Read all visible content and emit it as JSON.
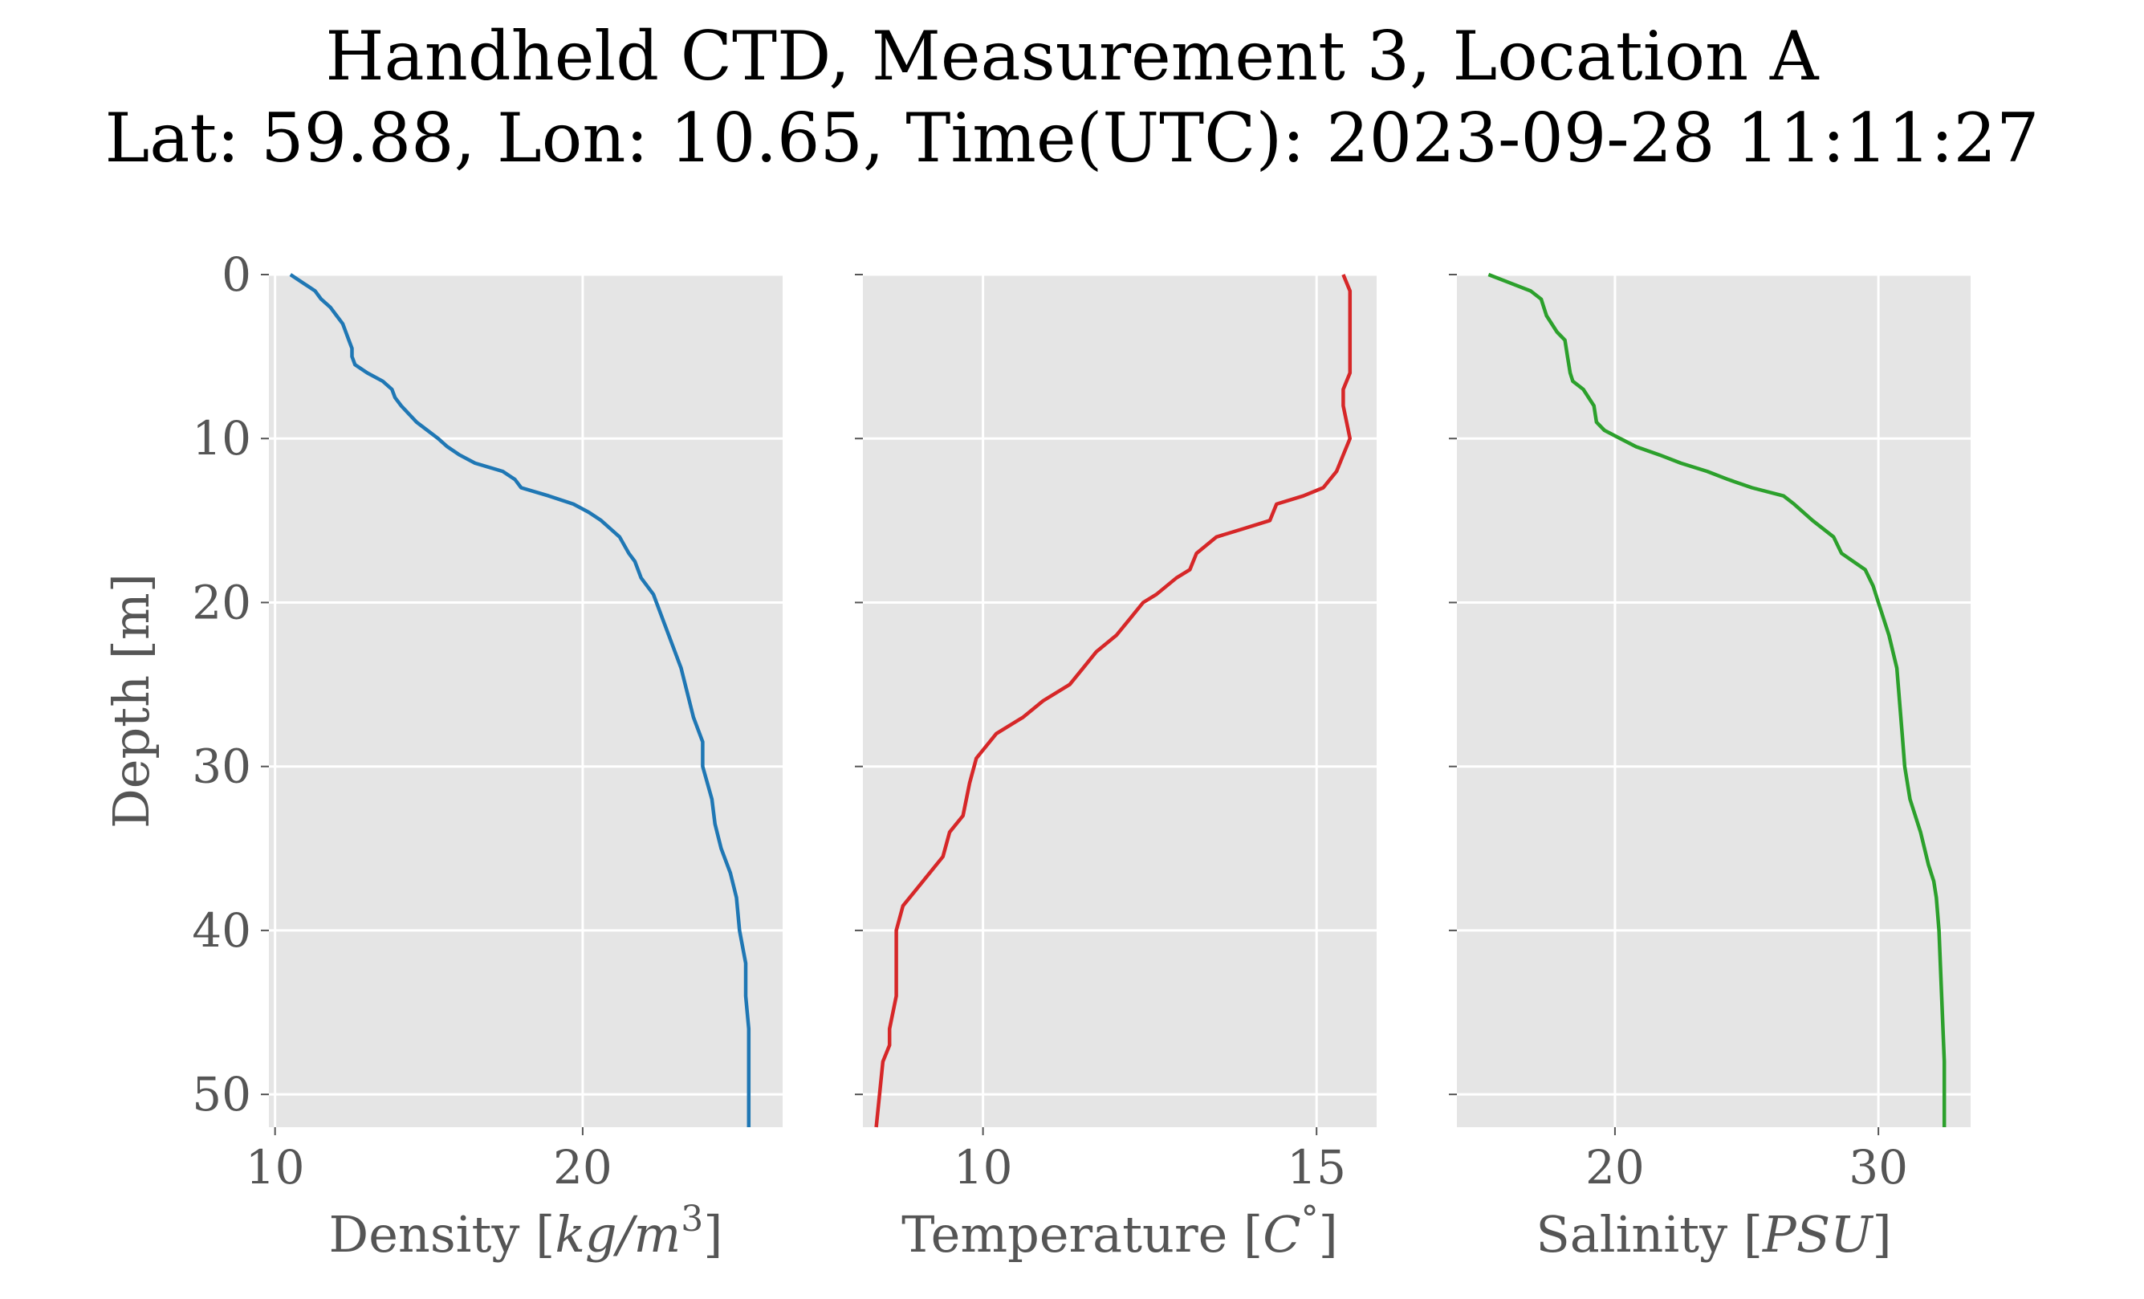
{
  "title": {
    "line1": "Handheld CTD, Measurement 3, Location A",
    "line2": "Lat: 59.88, Lon: 10.65, Time(UTC): 2023-09-28 11:11:27"
  },
  "chart_data": [
    {
      "type": "line",
      "panel": "density",
      "ylabel": "Depth [m]",
      "xlabel": "Density [kg/m³]",
      "xlabel_parts": [
        "Density [",
        "kg/m",
        "3",
        "]"
      ],
      "color": "#1f77b4",
      "background": "#e5e5e5",
      "grid": true,
      "xlim": [
        9.8,
        26.5
      ],
      "ylim": [
        52,
        0
      ],
      "xticks": [
        10,
        20
      ],
      "yticks": [
        0,
        10,
        20,
        30,
        40,
        50
      ],
      "x": [
        10.5,
        10.9,
        11.3,
        11.5,
        11.8,
        12.0,
        12.2,
        12.3,
        12.4,
        12.5,
        12.5,
        12.6,
        13.0,
        13.5,
        13.8,
        13.9,
        14.1,
        14.6,
        15.3,
        15.6,
        16.0,
        16.5,
        17.4,
        17.8,
        18.0,
        18.9,
        19.7,
        20.2,
        20.6,
        21.2,
        21.5,
        21.7,
        21.9,
        22.3,
        22.6,
        22.9,
        23.2,
        23.4,
        23.6,
        23.9,
        23.9,
        24.2,
        24.3,
        24.5,
        24.8,
        25.0,
        25.1,
        25.3,
        25.3,
        25.4,
        25.4,
        25.4,
        25.4
      ],
      "y": [
        0,
        0.5,
        1,
        1.5,
        2,
        2.5,
        3,
        3.5,
        4,
        4.5,
        5,
        5.5,
        6,
        6.5,
        7,
        7.5,
        8,
        9,
        10,
        10.5,
        11,
        11.5,
        12,
        12.5,
        13,
        13.5,
        14,
        14.5,
        15,
        16,
        17,
        17.5,
        18.5,
        19.5,
        21,
        22.5,
        24,
        25.5,
        27,
        28.5,
        30,
        32,
        33.5,
        35,
        36.5,
        38,
        40,
        42,
        44,
        46,
        48,
        50,
        52
      ]
    },
    {
      "type": "line",
      "panel": "temperature",
      "xlabel": "Temperature [C°]",
      "xlabel_parts": [
        "Temperature [",
        "C",
        "°",
        "]"
      ],
      "color": "#d62728",
      "background": "#e5e5e5",
      "grid": true,
      "xlim": [
        8.2,
        15.9
      ],
      "ylim": [
        52,
        0
      ],
      "xticks": [
        10,
        15
      ],
      "yticks": [
        0,
        10,
        20,
        30,
        40,
        50
      ],
      "x": [
        15.4,
        15.5,
        15.5,
        15.5,
        15.5,
        15.4,
        15.4,
        15.5,
        15.4,
        15.3,
        15.1,
        14.8,
        14.4,
        14.3,
        13.9,
        13.5,
        13.2,
        13.1,
        12.9,
        12.6,
        12.4,
        12.2,
        12.0,
        11.7,
        11.5,
        11.3,
        10.9,
        10.6,
        10.2,
        9.9,
        9.8,
        9.7,
        9.5,
        9.4,
        9.2,
        9.0,
        8.8,
        8.7,
        8.7,
        8.7,
        8.6,
        8.6,
        8.5,
        8.4
      ],
      "y": [
        0,
        1,
        2,
        4,
        6,
        7,
        8,
        10,
        11,
        12,
        13,
        13.5,
        14,
        15,
        15.5,
        16,
        17,
        18,
        18.5,
        19.5,
        20,
        21,
        22,
        23,
        24,
        25,
        26,
        27,
        28,
        29.5,
        31,
        33,
        34,
        35.5,
        36.5,
        37.5,
        38.5,
        40,
        42,
        44,
        46,
        47,
        48,
        52
      ]
    },
    {
      "type": "line",
      "panel": "salinity",
      "xlabel": "Salinity [PSU]",
      "xlabel_parts": [
        "Salinity [",
        "PSU",
        "",
        "]"
      ],
      "color": "#2ca02c",
      "background": "#e5e5e5",
      "grid": true,
      "xlim": [
        14.0,
        33.5
      ],
      "ylim": [
        52,
        0
      ],
      "xticks": [
        20,
        30
      ],
      "yticks": [
        0,
        10,
        20,
        30,
        40,
        50
      ],
      "x": [
        15.2,
        16.0,
        16.8,
        17.2,
        17.4,
        17.8,
        18.1,
        18.2,
        18.3,
        18.4,
        18.8,
        19.2,
        19.3,
        19.6,
        20.2,
        20.8,
        21.7,
        22.5,
        23.5,
        24.3,
        25.2,
        26.4,
        26.8,
        27.5,
        28.3,
        28.6,
        29.5,
        29.8,
        30.0,
        30.4,
        30.7,
        30.8,
        30.9,
        31.0,
        31.2,
        31.6,
        31.9,
        32.1,
        32.2,
        32.3,
        32.4,
        32.5,
        32.5
      ],
      "y": [
        0,
        0.5,
        1,
        1.5,
        2.5,
        3.5,
        4,
        5,
        6,
        6.5,
        7,
        8,
        9,
        9.5,
        10,
        10.5,
        11,
        11.5,
        12,
        12.5,
        13,
        13.5,
        14,
        15,
        16,
        17,
        18,
        19,
        20,
        22,
        24,
        26,
        28,
        30,
        32,
        34,
        36,
        37,
        38,
        40,
        44,
        48,
        52
      ]
    }
  ]
}
